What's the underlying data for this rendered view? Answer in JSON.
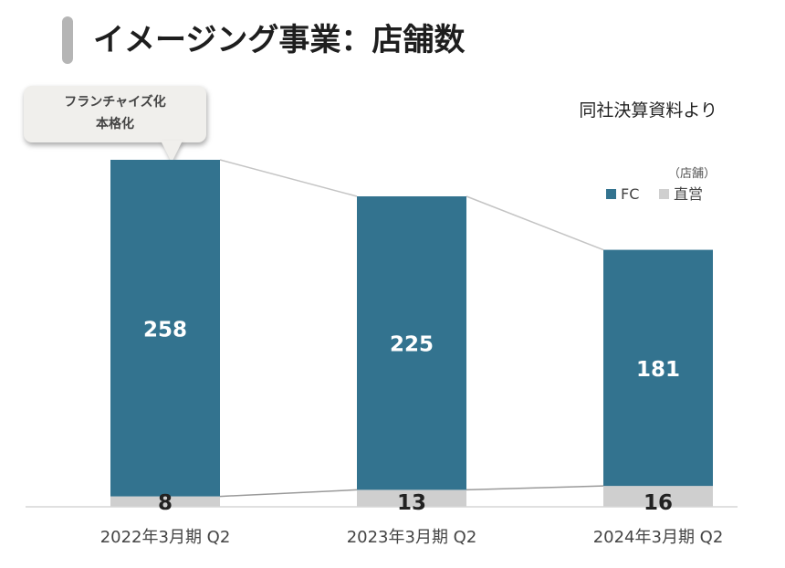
{
  "header": {
    "title": "イメージング事業：店舗数"
  },
  "source_note": "同社決算資料より",
  "callout": {
    "line1": "フランチャイズ化",
    "line2": "本格化"
  },
  "colors": {
    "fc": "#33738f",
    "direct": "#cfcfcf",
    "connector": "#c4c4c4",
    "title_bar": "#b5b5b5"
  },
  "chart_data": {
    "type": "bar",
    "stacked": true,
    "unit_label": "（店舗）",
    "categories": [
      "2022年3月期 Q2",
      "2023年3月期 Q2",
      "2024年3月期 Q2"
    ],
    "series": [
      {
        "name": "直営",
        "values": [
          8,
          13,
          16
        ],
        "color": "#cfcfcf"
      },
      {
        "name": "FC",
        "values": [
          258,
          225,
          181
        ],
        "color": "#33738f"
      }
    ],
    "totals": [
      266,
      238,
      197
    ],
    "legend": [
      "FC",
      "直営"
    ],
    "legend_position": "top-right",
    "ylim": [
      0,
      300
    ],
    "grid": false,
    "connector_lines": true
  }
}
